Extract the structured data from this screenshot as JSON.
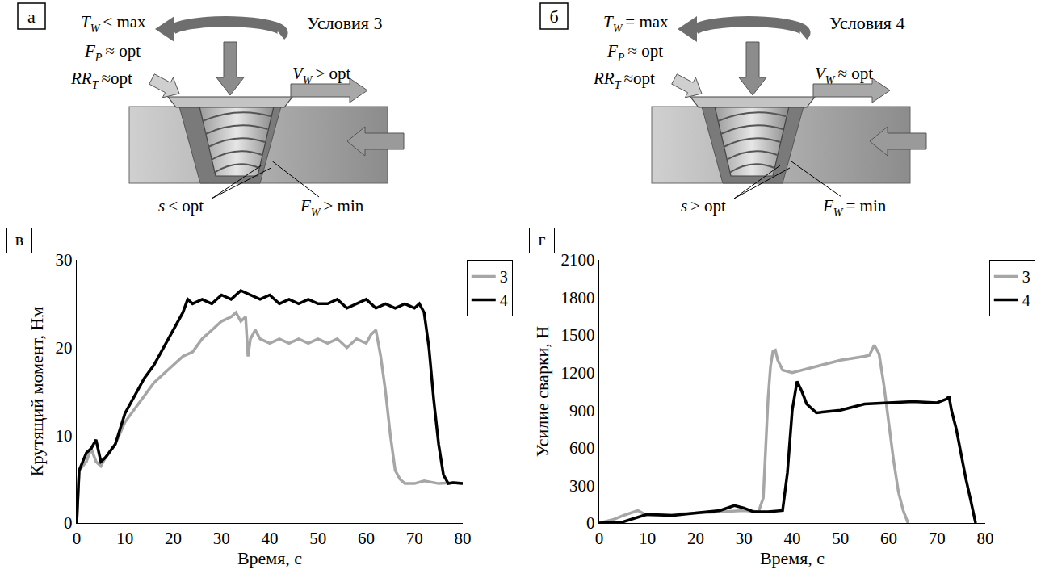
{
  "diagrams": [
    {
      "panel": "а",
      "title": "Условия 3",
      "labels": [
        {
          "symbol": "T",
          "sub": "W",
          "relation": "< max"
        },
        {
          "symbol": "F",
          "sub": "P",
          "relation": "≈ opt"
        },
        {
          "symbol": "RR",
          "sub": "T",
          "relation": "≈opt"
        },
        {
          "symbol": "V",
          "sub": "W",
          "relation": "> opt"
        },
        {
          "symbol": "s",
          "sub": "",
          "relation": "< opt"
        },
        {
          "symbol": "F",
          "sub": "W",
          "relation": "> min"
        }
      ]
    },
    {
      "panel": "б",
      "title": "Условия 4",
      "labels": [
        {
          "symbol": "T",
          "sub": "W",
          "relation": "= max"
        },
        {
          "symbol": "F",
          "sub": "P",
          "relation": "≈ opt"
        },
        {
          "symbol": "RR",
          "sub": "T",
          "relation": "≈opt"
        },
        {
          "symbol": "V",
          "sub": "W",
          "relation": "≈ opt"
        },
        {
          "symbol": "s",
          "sub": "",
          "relation": "≥ opt"
        },
        {
          "symbol": "F",
          "sub": "W",
          "relation": "= min"
        }
      ]
    }
  ],
  "chart_data": [
    {
      "panel": "в",
      "type": "line",
      "x_label": "Время, с",
      "y_label": "Крутящий момент, Нм",
      "xlim": [
        0,
        80
      ],
      "xticks": [
        0,
        10,
        20,
        30,
        40,
        50,
        60,
        70,
        80
      ],
      "ylim": [
        0,
        30
      ],
      "yticks": [
        0,
        10,
        20,
        30
      ],
      "grid": false,
      "legend": "right",
      "series": [
        {
          "name": "3",
          "color": "#a6a6a6",
          "x": [
            0,
            0.5,
            2,
            3,
            4,
            5,
            6,
            8,
            10,
            12,
            14,
            16,
            18,
            20,
            22,
            24,
            26,
            28,
            30,
            32,
            33,
            34,
            35,
            35.5,
            36,
            37,
            38,
            40,
            42,
            44,
            46,
            48,
            50,
            52,
            54,
            56,
            58,
            60,
            61,
            62,
            63,
            64,
            65,
            66,
            67,
            68,
            70,
            72,
            75,
            78,
            80
          ],
          "values": [
            0,
            6,
            7,
            8.5,
            7,
            6.5,
            7.5,
            9,
            11.5,
            13,
            14.5,
            16,
            17,
            18,
            19,
            19.5,
            21,
            22,
            23,
            23.5,
            24,
            23,
            23.5,
            19,
            21,
            22,
            21,
            20.5,
            21,
            20.5,
            21,
            20.5,
            21,
            20.5,
            21,
            20,
            21,
            20.5,
            21.5,
            22,
            19,
            15,
            10,
            6,
            5,
            4.5,
            4.5,
            4.8,
            4.5,
            4.6,
            4.5
          ]
        },
        {
          "name": "4",
          "color": "#000000",
          "x": [
            0,
            0.5,
            2,
            3,
            4,
            5,
            6,
            8,
            10,
            12,
            14,
            16,
            18,
            20,
            22,
            23,
            24,
            26,
            28,
            30,
            32,
            34,
            36,
            38,
            40,
            42,
            44,
            46,
            48,
            50,
            52,
            54,
            56,
            58,
            60,
            62,
            64,
            66,
            68,
            70,
            71,
            72,
            73,
            74,
            75,
            76,
            77,
            78,
            80
          ],
          "values": [
            0,
            6,
            8,
            8.5,
            9.5,
            7,
            7.5,
            9,
            12.5,
            14.5,
            16.5,
            18,
            20,
            22,
            24,
            25.5,
            25,
            25.5,
            25,
            26,
            25.5,
            26.5,
            26,
            25.5,
            26,
            25,
            25.5,
            25,
            25.5,
            25,
            25,
            25.5,
            24.5,
            25,
            25.5,
            24.5,
            25,
            24.5,
            25,
            24.5,
            25,
            24,
            20,
            14,
            9,
            5.5,
            4.5,
            4.6,
            4.5
          ]
        }
      ]
    },
    {
      "panel": "г",
      "type": "line",
      "x_label": "Время, с",
      "y_label": "Усилие сварки, Н",
      "xlim": [
        0,
        80
      ],
      "xticks": [
        0,
        10,
        20,
        30,
        40,
        50,
        60,
        70,
        80
      ],
      "ylim": [
        0,
        2100
      ],
      "yticks": [
        0,
        300,
        600,
        900,
        1200,
        1500,
        1800,
        2100
      ],
      "grid": false,
      "legend": "right",
      "series": [
        {
          "name": "3",
          "color": "#a6a6a6",
          "x": [
            0,
            3,
            5,
            7,
            8,
            10,
            15,
            20,
            25,
            30,
            33,
            34,
            34.5,
            35,
            35.5,
            36,
            36.5,
            37,
            38,
            40,
            45,
            50,
            55,
            56,
            57,
            58,
            59,
            60,
            61,
            62,
            63,
            64
          ],
          "values": [
            0,
            30,
            60,
            90,
            100,
            60,
            70,
            80,
            90,
            100,
            90,
            200,
            600,
            1000,
            1250,
            1370,
            1380,
            1300,
            1220,
            1200,
            1250,
            1300,
            1330,
            1340,
            1420,
            1350,
            1100,
            800,
            500,
            250,
            100,
            0
          ]
        },
        {
          "name": "4",
          "color": "#000000",
          "x": [
            0,
            5,
            10,
            15,
            20,
            25,
            28,
            30,
            32,
            35,
            38,
            39,
            40,
            41,
            42,
            43,
            45,
            50,
            55,
            60,
            65,
            70,
            72,
            72.5,
            73,
            74,
            75,
            76,
            77,
            78
          ],
          "values": [
            0,
            10,
            70,
            60,
            80,
            100,
            140,
            120,
            90,
            90,
            100,
            400,
            900,
            1130,
            1050,
            950,
            880,
            900,
            950,
            960,
            970,
            960,
            990,
            1010,
            900,
            750,
            550,
            350,
            180,
            0
          ]
        }
      ]
    }
  ]
}
